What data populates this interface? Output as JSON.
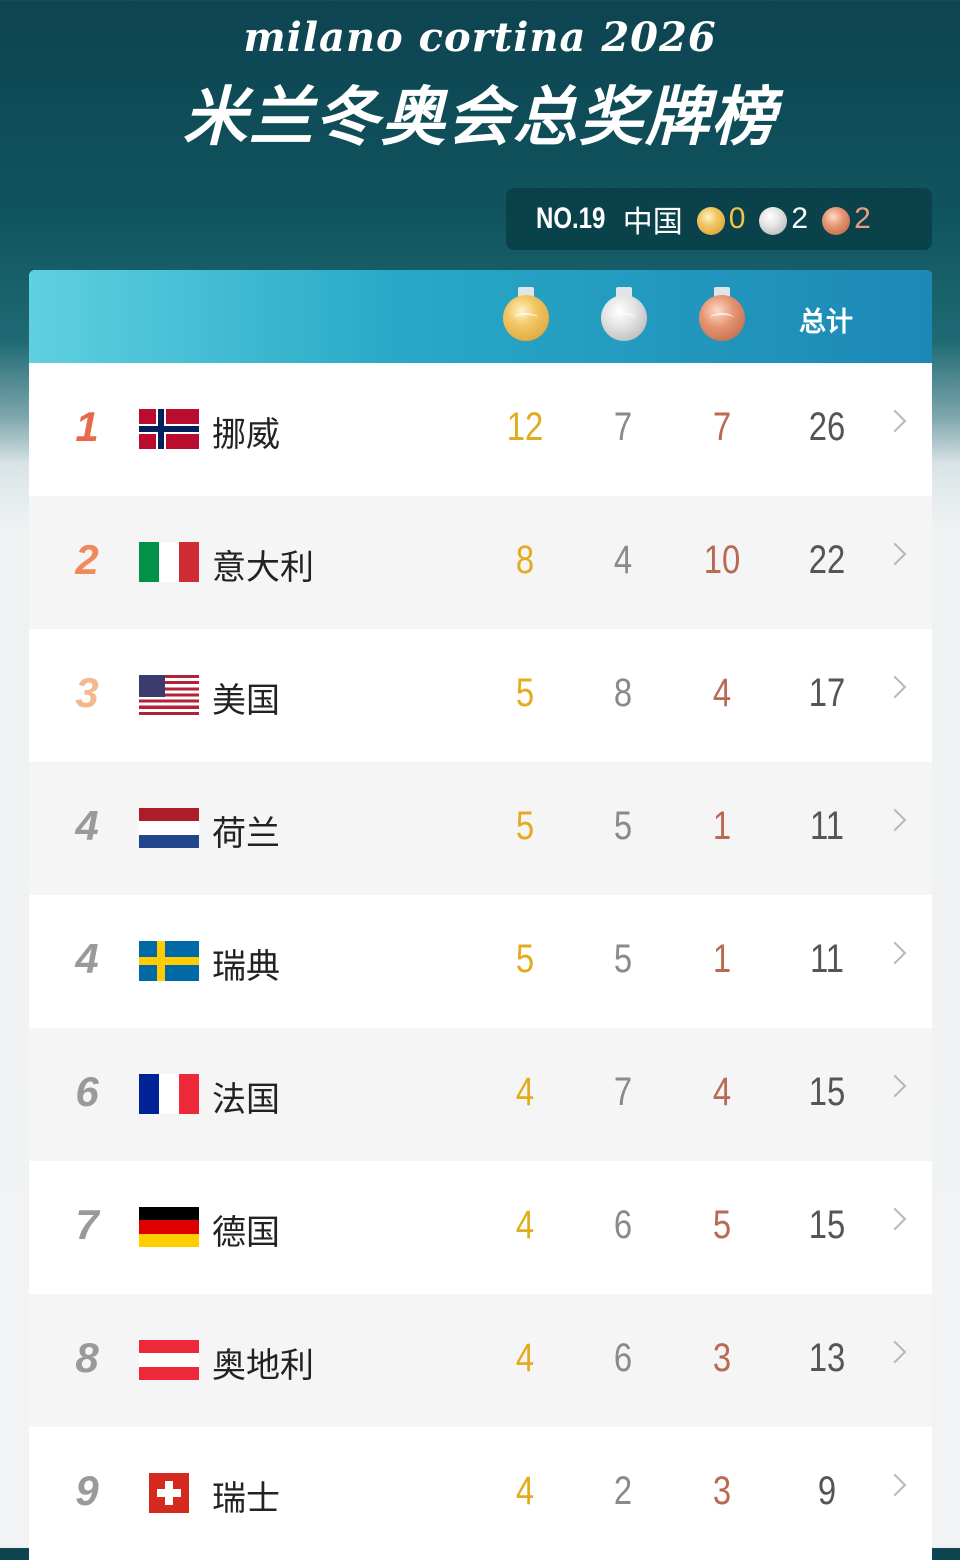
{
  "header": {
    "subtitle": "milano cortina 2026",
    "title": "米兰冬奥会总奖牌榜"
  },
  "china": {
    "rank": "NO.19",
    "name": "中国",
    "gold": "0",
    "silver": "2",
    "bronze": "2"
  },
  "table_header": {
    "total_label": "总计"
  },
  "colors": {
    "gold": "#e3ab1f",
    "silver": "#8a8a8a",
    "bronze": "#b86a52",
    "header_bg": "#1c88b6",
    "rank1": "#e8684a",
    "rank2": "#f08a5d",
    "rank3": "#f4b98e",
    "rank_other": "#9a9a9a"
  },
  "rows": [
    {
      "rank": "1",
      "country": "挪威",
      "flag": "norway-flag",
      "gold": "12",
      "silver": "7",
      "bronze": "7",
      "total": "26"
    },
    {
      "rank": "2",
      "country": "意大利",
      "flag": "italy-flag",
      "gold": "8",
      "silver": "4",
      "bronze": "10",
      "total": "22"
    },
    {
      "rank": "3",
      "country": "美国",
      "flag": "usa-flag",
      "gold": "5",
      "silver": "8",
      "bronze": "4",
      "total": "17"
    },
    {
      "rank": "4",
      "country": "荷兰",
      "flag": "netherlands-flag",
      "gold": "5",
      "silver": "5",
      "bronze": "1",
      "total": "11"
    },
    {
      "rank": "4",
      "country": "瑞典",
      "flag": "sweden-flag",
      "gold": "5",
      "silver": "5",
      "bronze": "1",
      "total": "11"
    },
    {
      "rank": "6",
      "country": "法国",
      "flag": "france-flag",
      "gold": "4",
      "silver": "7",
      "bronze": "4",
      "total": "15"
    },
    {
      "rank": "7",
      "country": "德国",
      "flag": "germany-flag",
      "gold": "4",
      "silver": "6",
      "bronze": "5",
      "total": "15"
    },
    {
      "rank": "8",
      "country": "奥地利",
      "flag": "austria-flag",
      "gold": "4",
      "silver": "6",
      "bronze": "3",
      "total": "13"
    },
    {
      "rank": "9",
      "country": "瑞士",
      "flag": "switzerland-flag",
      "gold": "4",
      "silver": "2",
      "bronze": "3",
      "total": "9"
    }
  ]
}
